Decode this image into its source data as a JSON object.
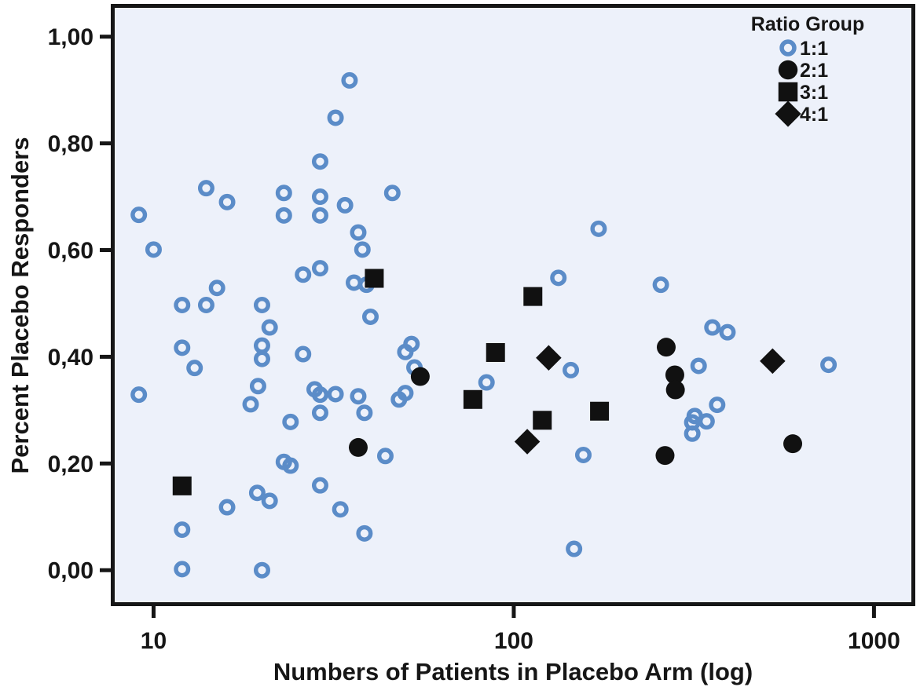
{
  "figure": {
    "background": "#ffffff",
    "plot_background": "#edf1fa",
    "frame_color": "#161616",
    "accent_blue": "#5b8cc8",
    "marker_black": "#111111"
  },
  "chart_data": {
    "type": "scatter",
    "title": "",
    "xlabel": "Numbers of Patients in Placebo Arm (log)",
    "ylabel": "Percent Placebo Responders",
    "x_scale": "log",
    "y_scale": "linear",
    "xlim": [
      7.8,
      1270
    ],
    "ylim": [
      -0.06,
      1.054
    ],
    "x_ticks": [
      10,
      100,
      1000
    ],
    "x_tick_labels": [
      "10",
      "100",
      "1000"
    ],
    "y_ticks": [
      0.0,
      0.2,
      0.4,
      0.6,
      0.8,
      1.0
    ],
    "y_tick_labels": [
      "0,00",
      "0,20",
      "0,40",
      "0,60",
      "0,80",
      "1,00"
    ],
    "grid": false,
    "legend": {
      "title": "Ratio Group",
      "position": "top-right",
      "entries": [
        {
          "label": "1:1",
          "marker": "open-circle",
          "color": "#5b8cc8"
        },
        {
          "label": "2:1",
          "marker": "filled-circle",
          "color": "#111111"
        },
        {
          "label": "3:1",
          "marker": "filled-square",
          "color": "#111111"
        },
        {
          "label": "4:1",
          "marker": "filled-diamond",
          "color": "#111111"
        }
      ]
    },
    "series": [
      {
        "name": "1:1",
        "marker": "open-circle",
        "color": "#5b8cc8",
        "points": [
          [
            9.1,
            0.666
          ],
          [
            10,
            0.601
          ],
          [
            9.1,
            0.329
          ],
          [
            12,
            0.497
          ],
          [
            12,
            0.417
          ],
          [
            12,
            0.076
          ],
          [
            12,
            0.002
          ],
          [
            13,
            0.379
          ],
          [
            14,
            0.716
          ],
          [
            14,
            0.497
          ],
          [
            15,
            0.529
          ],
          [
            16,
            0.69
          ],
          [
            16,
            0.118
          ],
          [
            18.6,
            0.311
          ],
          [
            19.5,
            0.345
          ],
          [
            19.4,
            0.145
          ],
          [
            20,
            0.497
          ],
          [
            20,
            0.421
          ],
          [
            20,
            0.396
          ],
          [
            20,
            0.0
          ],
          [
            21,
            0.455
          ],
          [
            21,
            0.13
          ],
          [
            23,
            0.707
          ],
          [
            23,
            0.665
          ],
          [
            23,
            0.203
          ],
          [
            24,
            0.278
          ],
          [
            24,
            0.196
          ],
          [
            26,
            0.554
          ],
          [
            26,
            0.405
          ],
          [
            28,
            0.339
          ],
          [
            29,
            0.766
          ],
          [
            29,
            0.7
          ],
          [
            29,
            0.665
          ],
          [
            29,
            0.566
          ],
          [
            29,
            0.329
          ],
          [
            29,
            0.295
          ],
          [
            29,
            0.159
          ],
          [
            32,
            0.848
          ],
          [
            32,
            0.33
          ],
          [
            33,
            0.114
          ],
          [
            34,
            0.684
          ],
          [
            35,
            0.918
          ],
          [
            36,
            0.539
          ],
          [
            37,
            0.633
          ],
          [
            37,
            0.326
          ],
          [
            38,
            0.601
          ],
          [
            38.5,
            0.295
          ],
          [
            38.5,
            0.069
          ],
          [
            39,
            0.535
          ],
          [
            40,
            0.475
          ],
          [
            44,
            0.214
          ],
          [
            46,
            0.707
          ],
          [
            48,
            0.32
          ],
          [
            50,
            0.409
          ],
          [
            50,
            0.332
          ],
          [
            52,
            0.424
          ],
          [
            53,
            0.38
          ],
          [
            84,
            0.352
          ],
          [
            133,
            0.548
          ],
          [
            144,
            0.375
          ],
          [
            147,
            0.04
          ],
          [
            156,
            0.216
          ],
          [
            172,
            0.64
          ],
          [
            256,
            0.535
          ],
          [
            313,
            0.277
          ],
          [
            313,
            0.256
          ],
          [
            318,
            0.289
          ],
          [
            326,
            0.383
          ],
          [
            343,
            0.279
          ],
          [
            356,
            0.455
          ],
          [
            367,
            0.31
          ],
          [
            392,
            0.446
          ],
          [
            748,
            0.385
          ]
        ]
      },
      {
        "name": "2:1",
        "marker": "filled-circle",
        "color": "#111111",
        "points": [
          [
            37,
            0.23
          ],
          [
            55,
            0.363
          ],
          [
            263,
            0.215
          ],
          [
            265,
            0.418
          ],
          [
            280,
            0.366
          ],
          [
            281,
            0.338
          ],
          [
            595,
            0.237
          ]
        ]
      },
      {
        "name": "3:1",
        "marker": "filled-square",
        "color": "#111111",
        "points": [
          [
            12,
            0.158
          ],
          [
            41,
            0.547
          ],
          [
            77,
            0.32
          ],
          [
            89,
            0.408
          ],
          [
            113,
            0.513
          ],
          [
            120,
            0.281
          ],
          [
            173,
            0.298
          ]
        ]
      },
      {
        "name": "4:1",
        "marker": "filled-diamond",
        "color": "#111111",
        "points": [
          [
            109,
            0.241
          ],
          [
            125,
            0.398
          ],
          [
            523,
            0.392
          ]
        ]
      }
    ]
  }
}
